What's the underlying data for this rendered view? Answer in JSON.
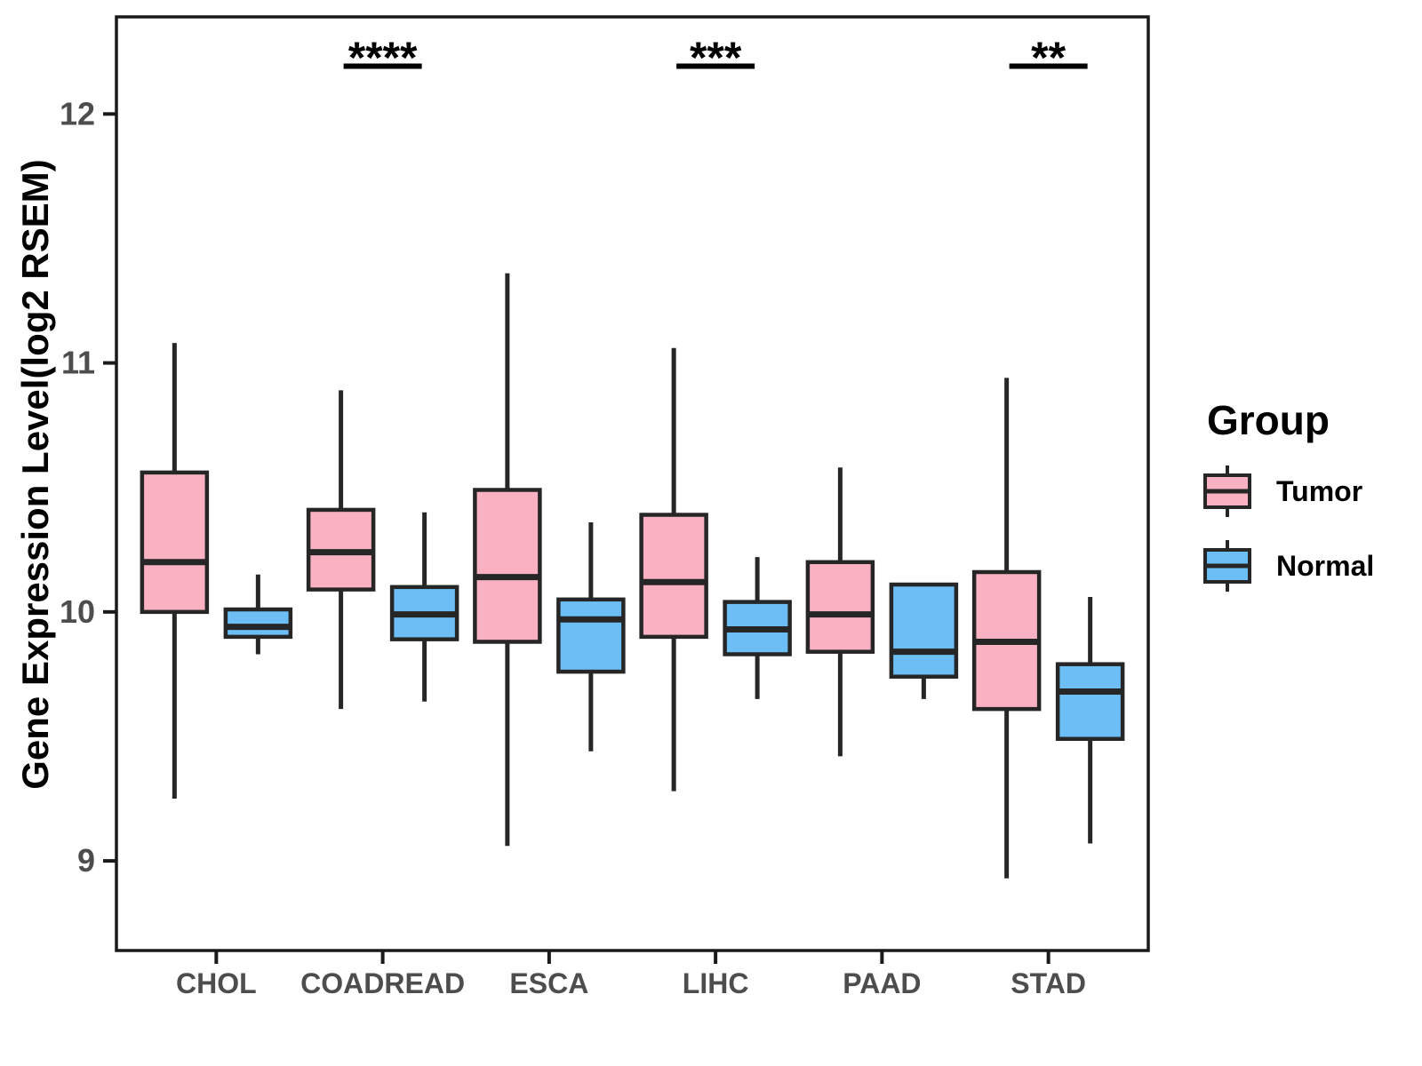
{
  "y_axis": {
    "label": "Gene Expression Level(log2 RSEM)",
    "tick_labels": [
      "9",
      "10",
      "11",
      "12"
    ],
    "tick_values": [
      9,
      10,
      11,
      12
    ]
  },
  "x_axis": {
    "categories": [
      "CHOL",
      "COADREAD",
      "ESCA",
      "LIHC",
      "PAAD",
      "STAD"
    ]
  },
  "legend": {
    "title": "Group",
    "items": [
      {
        "label": "Tumor",
        "color": "#FAB2C3"
      },
      {
        "label": "Normal",
        "color": "#6CBEF4"
      }
    ]
  },
  "colors": {
    "tumor_fill": "#FAB2C3",
    "normal_fill": "#6CBEF4",
    "line": "#262626",
    "axis_text": "#4D4D4D",
    "panel_border": "#1A1A1A"
  },
  "chart_data": {
    "type": "grouped_boxplot",
    "title": "",
    "xlabel": "",
    "ylabel": "Gene Expression Level(log2 RSEM)",
    "ylim": [
      8.64,
      12.39
    ],
    "yticks": [
      9,
      10,
      11,
      12
    ],
    "grid": false,
    "legend_position": "right",
    "categories": [
      "CHOL",
      "COADREAD",
      "ESCA",
      "LIHC",
      "PAAD",
      "STAD"
    ],
    "series": [
      {
        "name": "Tumor",
        "color": "#FAB2C3",
        "boxes": [
          {
            "category": "CHOL",
            "whisker_low": 9.25,
            "q1": 10.0,
            "median": 10.2,
            "q3": 10.56,
            "whisker_high": 11.08
          },
          {
            "category": "COADREAD",
            "whisker_low": 9.61,
            "q1": 10.09,
            "median": 10.24,
            "q3": 10.41,
            "whisker_high": 10.89
          },
          {
            "category": "ESCA",
            "whisker_low": 9.06,
            "q1": 9.88,
            "median": 10.14,
            "q3": 10.49,
            "whisker_high": 11.36
          },
          {
            "category": "LIHC",
            "whisker_low": 9.28,
            "q1": 9.9,
            "median": 10.12,
            "q3": 10.39,
            "whisker_high": 11.06
          },
          {
            "category": "PAAD",
            "whisker_low": 9.42,
            "q1": 9.84,
            "median": 9.99,
            "q3": 10.2,
            "whisker_high": 10.58
          },
          {
            "category": "STAD",
            "whisker_low": 8.93,
            "q1": 9.61,
            "median": 9.88,
            "q3": 10.16,
            "whisker_high": 10.94
          }
        ]
      },
      {
        "name": "Normal",
        "color": "#6CBEF4",
        "boxes": [
          {
            "category": "CHOL",
            "whisker_low": 9.83,
            "q1": 9.9,
            "median": 9.94,
            "q3": 10.01,
            "whisker_high": 10.15
          },
          {
            "category": "COADREAD",
            "whisker_low": 9.64,
            "q1": 9.89,
            "median": 9.99,
            "q3": 10.1,
            "whisker_high": 10.4
          },
          {
            "category": "ESCA",
            "whisker_low": 9.44,
            "q1": 9.76,
            "median": 9.97,
            "q3": 10.05,
            "whisker_high": 10.36
          },
          {
            "category": "LIHC",
            "whisker_low": 9.65,
            "q1": 9.83,
            "median": 9.93,
            "q3": 10.04,
            "whisker_high": 10.22
          },
          {
            "category": "PAAD",
            "whisker_low": 9.65,
            "q1": 9.74,
            "median": 9.84,
            "q3": 10.11,
            "whisker_high": 10.11
          },
          {
            "category": "STAD",
            "whisker_low": 9.07,
            "q1": 9.49,
            "median": 9.68,
            "q3": 9.79,
            "whisker_high": 10.06
          }
        ]
      }
    ],
    "significance": [
      {
        "category": "COADREAD",
        "label": "****"
      },
      {
        "category": "LIHC",
        "label": "***"
      },
      {
        "category": "STAD",
        "label": "**"
      }
    ]
  }
}
